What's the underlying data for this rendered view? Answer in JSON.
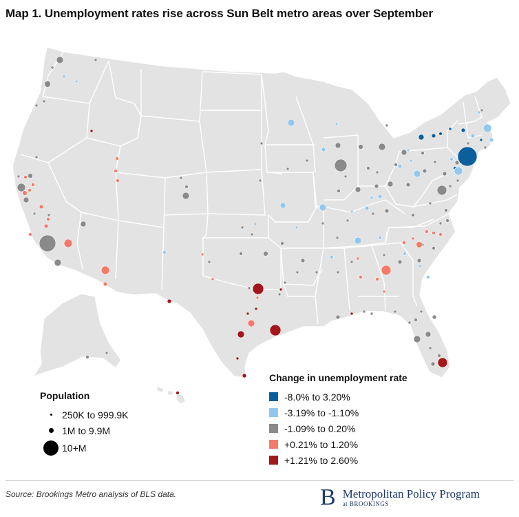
{
  "title": "Map 1. Unemployment rates rise across Sun Belt metro areas over September",
  "legend_population": {
    "title": "Population",
    "items": [
      "250K to 999.9K",
      "1M to 9.9M",
      "10+M"
    ]
  },
  "legend_change": {
    "title": "Change in unemployment rate",
    "items": [
      {
        "label": "-8.0% to 3.20%",
        "color": "#0a5f9c"
      },
      {
        "label": "-3.19% to -1.10%",
        "color": "#93c8ee"
      },
      {
        "label": "-1.09% to 0.20%",
        "color": "#8a8a8a"
      },
      {
        "label": "+0.21% to 1.20%",
        "color": "#f47a6a"
      },
      {
        "label": "+1.21% to 2.60%",
        "color": "#a3161b"
      }
    ]
  },
  "source": "Source: Brookings Metro analysis of BLS data.",
  "brand": {
    "letter": "B",
    "name": "Metropolitan Policy Program",
    "sub": "at BROOKINGS"
  },
  "colors": {
    "land": "#e3e3e3",
    "border": "#ffffff"
  }
}
